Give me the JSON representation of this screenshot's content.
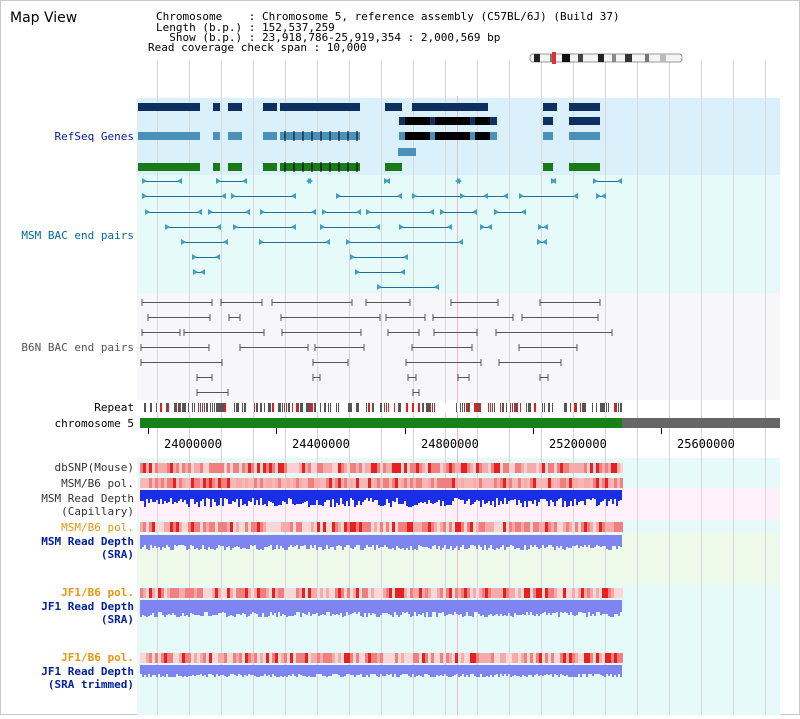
{
  "title": "Map View",
  "header": {
    "line1": "Chromosome    : Chromosome 5, reference assembly (C57BL/6J) (Build 37)",
    "line2": "Length (b.p.) : 152,537,259",
    "line3": "  Show (b.p.) : 23,918,786-25,919,354 : 2,000,569 bp",
    "line4": "Read coverage check span : 10,000"
  },
  "tracks": {
    "refseq": "RefSeq Genes",
    "msm_bac": "MSM BAC end pairs",
    "b6n_bac": "B6N BAC end pairs",
    "repeat": "Repeat",
    "chromosome": "chromosome 5",
    "dbsnp": "dbSNP(Mouse)",
    "msm_b6_pol_1": "MSM/B6 pol.",
    "msm_read_depth_cap_1": "MSM Read Depth",
    "msm_read_depth_cap_2": "(Capillary)",
    "msm_b6_pol_2": "MSM/B6 pol.",
    "msm_read_depth_sra_1": "MSM Read Depth",
    "msm_read_depth_sra_2": "(SRA)",
    "jf1_b6_pol_1": "JF1/B6 pol.",
    "jf1_read_depth_sra_1": "JF1 Read Depth",
    "jf1_read_depth_sra_2": "(SRA)",
    "jf1_b6_pol_2": "JF1/B6 pol.",
    "jf1_read_depth_trim_1": "JF1 Read Depth",
    "jf1_read_depth_trim_2": "(SRA trimmed)"
  },
  "axis": {
    "ticks": [
      "24000000",
      "24400000",
      "24800000",
      "25200000",
      "25600000"
    ]
  },
  "colors": {
    "refseq_bg": "#daf0fa",
    "bac_bg": "#e6fafa",
    "b6n_bg": "#f7f7fa",
    "dbsnp_red": "#ef3030",
    "depth_blue": "#1a2ee6",
    "depth_light": "#7f85f0",
    "chromosome_green": "#188018",
    "orange_label": "#e89510",
    "blue_label": "#001fa0"
  }
}
